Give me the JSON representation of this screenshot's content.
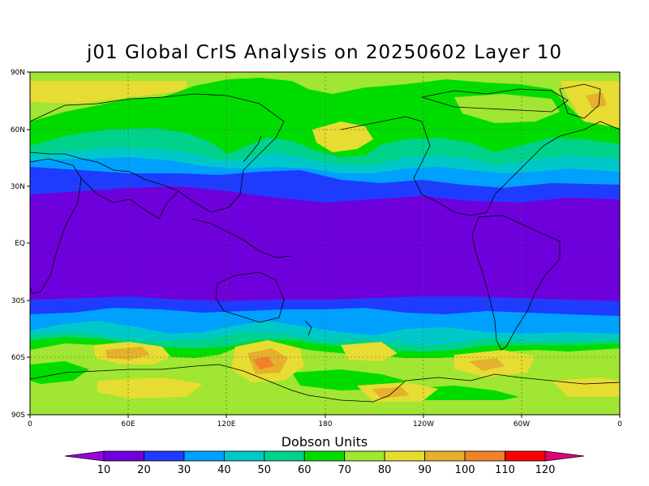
{
  "title": "j01 Global CrIS Analysis on 20250602 Layer 10",
  "lat_labels": [
    "90N",
    "60N",
    "30N",
    "EQ",
    "30S",
    "60S",
    "90S"
  ],
  "lon_labels": [
    "0",
    "60E",
    "120E",
    "180",
    "120W",
    "60W",
    "0"
  ],
  "colorbar": {
    "title": "Dobson Units",
    "ticks": [
      "10",
      "20",
      "30",
      "40",
      "50",
      "60",
      "70",
      "80",
      "90",
      "100",
      "110",
      "120"
    ],
    "colors": [
      "#9c00dc",
      "#6e00dc",
      "#1e3cff",
      "#00a0ff",
      "#00c8c8",
      "#00d28c",
      "#00dc00",
      "#a0e632",
      "#e6dc32",
      "#e6af2d",
      "#f08228",
      "#fa0000",
      "#e6007a"
    ]
  },
  "map_colors": {
    "c20": "#6e00dc",
    "c30": "#1e3cff",
    "c40": "#00a0ff",
    "c50": "#00c8c8",
    "c60": "#00d28c",
    "c70": "#00dc00",
    "c80": "#a0e632",
    "c90": "#e6dc32",
    "c100": "#e6af2d",
    "c110": "#f08228"
  }
}
